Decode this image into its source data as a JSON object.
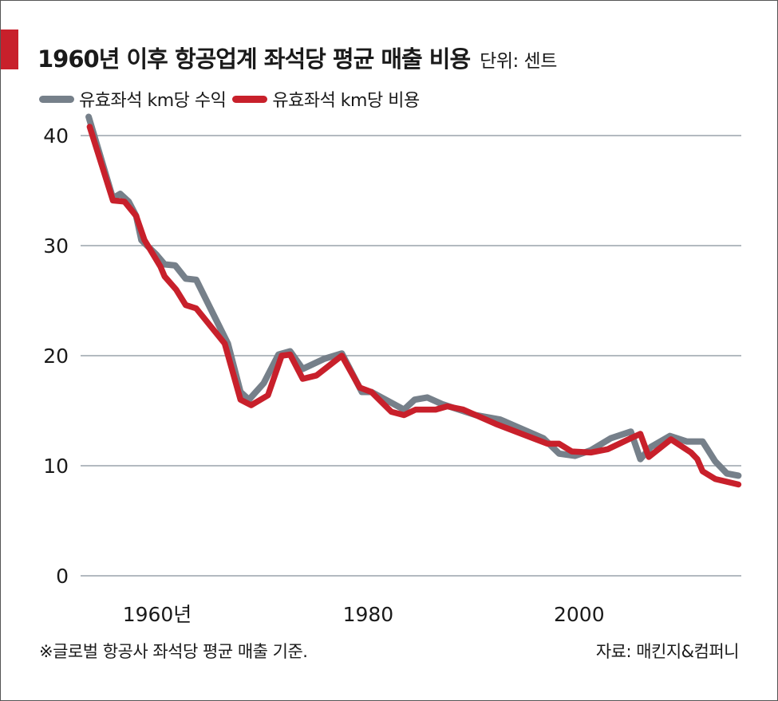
{
  "title": "1960년 이후 항공업계 좌석당 평균 매출 비용",
  "unit": "단위: 센트",
  "note": "※글로벌 항공사 좌석당 평균 매출 기준.",
  "source": "자료: 매킨지&컴퍼니",
  "chart_data": {
    "type": "line",
    "title": "1960년 이후 항공업계 좌석당 평균 매출 비용",
    "ylim": [
      0,
      42
    ],
    "xlim": [
      1953,
      2016
    ],
    "yticks": [
      0,
      10,
      20,
      30,
      40
    ],
    "xticks": [
      {
        "value": 1960,
        "label": "1960년"
      },
      {
        "value": 1980,
        "label": "1980"
      },
      {
        "value": 2000,
        "label": "2000"
      }
    ],
    "grid": true,
    "legend": "top-left",
    "series": [
      {
        "name": "유효좌석 km당 수익",
        "color": "#76808a",
        "points": [
          [
            1953.5,
            41.7
          ],
          [
            1955.8,
            34.3
          ],
          [
            1956.5,
            34.7
          ],
          [
            1957.3,
            34.0
          ],
          [
            1958.0,
            32.7
          ],
          [
            1958.5,
            30.5
          ],
          [
            1959.9,
            29.2
          ],
          [
            1960.7,
            28.3
          ],
          [
            1961.7,
            28.2
          ],
          [
            1962.7,
            27.0
          ],
          [
            1963.7,
            26.9
          ],
          [
            1966.7,
            21.1
          ],
          [
            1967.9,
            16.7
          ],
          [
            1968.7,
            16.0
          ],
          [
            1970.1,
            17.5
          ],
          [
            1971.5,
            20.1
          ],
          [
            1972.6,
            20.4
          ],
          [
            1973.8,
            18.8
          ],
          [
            1975.8,
            19.7
          ],
          [
            1977.5,
            20.2
          ],
          [
            1979.4,
            16.7
          ],
          [
            1980.3,
            16.7
          ],
          [
            1983.4,
            15.1
          ],
          [
            1984.4,
            16.0
          ],
          [
            1985.6,
            16.2
          ],
          [
            1987.0,
            15.6
          ],
          [
            1990.2,
            14.6
          ],
          [
            1992.5,
            14.2
          ],
          [
            1996.6,
            12.5
          ],
          [
            1998.1,
            11.1
          ],
          [
            1999.6,
            10.9
          ],
          [
            2001.1,
            11.4
          ],
          [
            2003.0,
            12.5
          ],
          [
            2004.9,
            13.1
          ],
          [
            2005.8,
            10.6
          ],
          [
            2006.8,
            11.7
          ],
          [
            2008.6,
            12.7
          ],
          [
            2010.2,
            12.2
          ],
          [
            2011.7,
            12.2
          ],
          [
            2012.9,
            10.4
          ],
          [
            2014.0,
            9.3
          ],
          [
            2015.1,
            9.1
          ]
        ]
      },
      {
        "name": "유효좌석 km당 비용",
        "color": "#c8202b",
        "points": [
          [
            1953.6,
            40.8
          ],
          [
            1955.8,
            34.1
          ],
          [
            1956.9,
            34.0
          ],
          [
            1958.0,
            32.7
          ],
          [
            1958.8,
            30.5
          ],
          [
            1960.3,
            28.1
          ],
          [
            1960.7,
            27.2
          ],
          [
            1961.8,
            26.0
          ],
          [
            1962.7,
            24.6
          ],
          [
            1963.7,
            24.3
          ],
          [
            1966.4,
            21.1
          ],
          [
            1967.9,
            16.0
          ],
          [
            1968.9,
            15.5
          ],
          [
            1970.5,
            16.4
          ],
          [
            1971.8,
            20.0
          ],
          [
            1972.6,
            20.1
          ],
          [
            1973.8,
            17.9
          ],
          [
            1975.1,
            18.2
          ],
          [
            1977.5,
            20.0
          ],
          [
            1979.2,
            17.1
          ],
          [
            1980.3,
            16.7
          ],
          [
            1982.2,
            14.9
          ],
          [
            1983.4,
            14.6
          ],
          [
            1984.5,
            15.1
          ],
          [
            1986.4,
            15.1
          ],
          [
            1987.5,
            15.4
          ],
          [
            1989.0,
            15.1
          ],
          [
            1992.1,
            13.8
          ],
          [
            1995.9,
            12.4
          ],
          [
            1997.0,
            12.0
          ],
          [
            1998.1,
            12.0
          ],
          [
            1999.3,
            11.3
          ],
          [
            2001.1,
            11.2
          ],
          [
            2002.7,
            11.5
          ],
          [
            2004.9,
            12.5
          ],
          [
            2005.8,
            12.9
          ],
          [
            2006.6,
            10.8
          ],
          [
            2008.7,
            12.4
          ],
          [
            2010.6,
            11.2
          ],
          [
            2011.2,
            10.6
          ],
          [
            2011.7,
            9.5
          ],
          [
            2012.9,
            8.8
          ],
          [
            2015.1,
            8.3
          ]
        ]
      }
    ]
  }
}
